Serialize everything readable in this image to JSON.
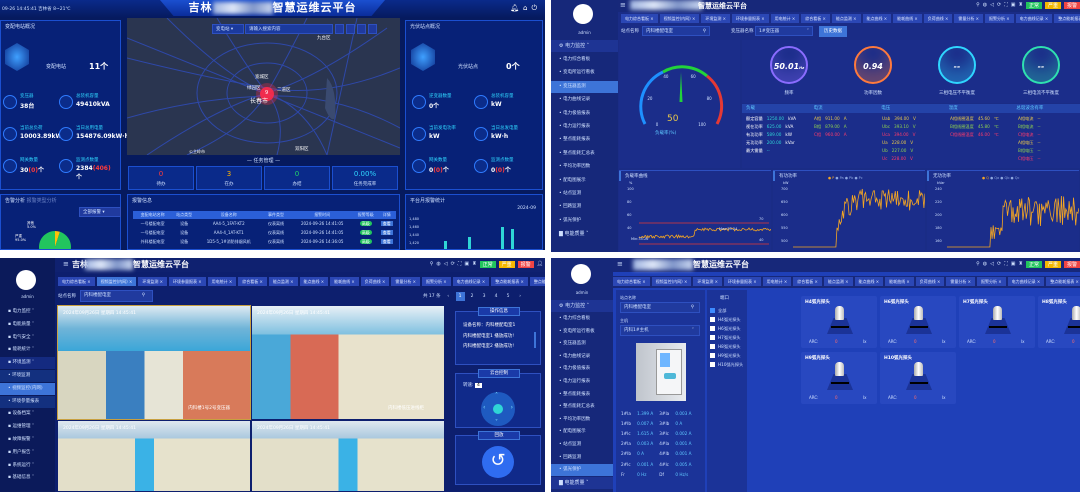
{
  "title_prefix": "吉林",
  "title_suffix": "智慧运维云平台",
  "dashboard": {
    "status": "09-26 14:45:41  吉林省  8~21℃",
    "left": {
      "title": "变配电站概况",
      "station_label": "变配电站",
      "station_value": "11个",
      "kpis": [
        {
          "label": "变压器",
          "value": "38台",
          "icon": "transformer-icon"
        },
        {
          "label": "总装机容量",
          "value": "49410kVA",
          "icon": "capacity-icon"
        },
        {
          "label": "当前总负荷",
          "value": "10003.89kW",
          "icon": "load-icon"
        },
        {
          "label": "当日总用电量",
          "value": "154876.09kW·h",
          "icon": "energy-icon"
        },
        {
          "label": "网关数量",
          "value": "30",
          "alarm": "(0)",
          "unit": "个",
          "icon": "gateway-icon"
        },
        {
          "label": "监测点数量",
          "value": "2384",
          "alarm": "(406)",
          "unit": "个",
          "icon": "monitor-point-icon"
        }
      ]
    },
    "map": {
      "type_select": "变电站",
      "search_placeholder": "请输入搜索内容",
      "marker_count": "9",
      "labels": [
        "九台区",
        "宽城区",
        "绿园区",
        "二道区",
        "长春市",
        "双阳区",
        "公主岭市"
      ]
    },
    "tasks": {
      "title": "任务管理",
      "items": [
        {
          "value": "0",
          "label": "待办",
          "color": "#ff3b3b"
        },
        {
          "value": "3",
          "label": "在办",
          "color": "#ffb300"
        },
        {
          "value": "0",
          "label": "办结",
          "color": "#22d36b"
        },
        {
          "value": "0.00%",
          "label": "任务完成率",
          "color": "#2fd6ff"
        }
      ]
    },
    "right": {
      "title": "光伏站点概况",
      "station_label": "光伏站点",
      "station_value": "0个",
      "kpis": [
        {
          "label": "逆变器数量",
          "value": "0个",
          "icon": "inverter-icon"
        },
        {
          "label": "总装机容量",
          "value": "kW",
          "icon": "capacity-icon"
        },
        {
          "label": "当前发电功率",
          "value": "kW",
          "icon": "power-icon"
        },
        {
          "label": "当日总发电量",
          "value": "kW·h",
          "icon": "energy-icon"
        },
        {
          "label": "网关数量",
          "value": "0",
          "alarm": "(0)",
          "unit": "个",
          "icon": "gateway-icon"
        },
        {
          "label": "监测点数量",
          "value": "0",
          "alarm": "(0)",
          "unit": "个",
          "icon": "monitor-point-icon"
        }
      ]
    },
    "alarm_analysis": {
      "title": "告警分析",
      "subtitle": "报警类型分析",
      "filter": "全部报警",
      "pie": [
        {
          "label": "其他",
          "pct": "5.0%",
          "value": 5,
          "color": "#ffc107"
        },
        {
          "label": "严重",
          "pct": "95.0%",
          "value": 95,
          "color": "#22c55e"
        }
      ]
    },
    "alarm_info": {
      "title": "报警信息",
      "headers": [
        "变配电站名称",
        "站点类型",
        "设备名称",
        "事件类型",
        "报警时间",
        "报警等级",
        "详情"
      ],
      "rows": [
        [
          "一号楼配电室",
          "设备",
          "AA4-5_1FAT-KT2",
          "仪表离线",
          "2024-09-26 14:41:05",
          "高级",
          "查看"
        ],
        [
          "一号楼配电室",
          "设备",
          "AA4-4_1AT-KT1",
          "仪表离线",
          "2024-09-26 14:41:05",
          "高级",
          "查看"
        ],
        [
          "外科楼配电室",
          "设备",
          "1D5-5_1#消防排烟风机",
          "仪表离线",
          "2024-09-26 14:36:05",
          "高级",
          "查看"
        ]
      ]
    },
    "monthly": {
      "title": "平台月报警统计",
      "month": "2024-09",
      "yticks": [
        "1,480",
        "1,460",
        "1,440",
        "1,420"
      ]
    }
  },
  "transformer": {
    "user": "admin",
    "menu": {
      "group": "电力监控",
      "items": [
        "电力综合看板",
        "变电所运行看板",
        "变压器监测",
        "电力曲线记录",
        "电力极值报表",
        "电力运行报表",
        "整点能耗报表",
        "整点能耗汇总表",
        "平均功率因数",
        "配电图展示",
        "站点监测",
        "回路监测",
        "弧光保护"
      ],
      "active": 2,
      "next_group": "电能质量"
    },
    "tabs": [
      "电力综合看板",
      "视频监控(内网)",
      "环境监测",
      "环境参量报表",
      "用电统计",
      "综合看板",
      "能点监测",
      "能点曲线",
      "能耗曲线",
      "负荷曲线",
      "需量分析",
      "报警分析",
      "电力曲线记录",
      "整点能耗报表",
      "整点能耗汇总",
      "变压器监测"
    ],
    "filter": {
      "station_label": "站点名称",
      "station_value": "内科楼配电室",
      "transformer_label": "变压器名称",
      "transformer_value": "1#变压器",
      "history_button": "历史数据"
    },
    "gauge": {
      "value": "50",
      "label": "负载率(%)",
      "ticks": [
        "0",
        "20",
        "40",
        "60",
        "80",
        "100"
      ],
      "percent": 50
    },
    "rings": [
      {
        "value": "50.01",
        "unit": "Hz",
        "label": "频率",
        "color": "#8a6cff"
      },
      {
        "value": "0.94",
        "unit": "",
        "label": "功率因数",
        "color": "#ff7a3d"
      },
      {
        "value": "--",
        "unit": "",
        "label": "三相电压不平衡度",
        "color": "#2fd6ff"
      },
      {
        "value": "--",
        "unit": "",
        "label": "三相电流不平衡度",
        "color": "#2fe0b0"
      }
    ],
    "table": {
      "headers": [
        "负载",
        "电流",
        "电压",
        "温度",
        "总谐波含有率"
      ],
      "load": [
        [
          "额定容量",
          "1250.00",
          "kVA"
        ],
        [
          "视在功率",
          "625.00",
          "kVA"
        ],
        [
          "有功功率",
          "589.00",
          "kW"
        ],
        [
          "无功功率",
          "200.00",
          "kVar"
        ],
        [
          "最大需量",
          "--",
          ""
        ]
      ],
      "current": [
        [
          "A相",
          "911.00",
          "A",
          "#e8c84a"
        ],
        [
          "B相",
          "879.00",
          "A",
          "#8fd14f"
        ],
        [
          "C相",
          "960.00",
          "A",
          "#ff3b6b"
        ]
      ],
      "voltage": [
        [
          "Uab",
          "394.00",
          "V",
          "#e8c84a"
        ],
        [
          "Ubc",
          "393.10",
          "V",
          "#8fd14f"
        ],
        [
          "Uca",
          "394.00",
          "V",
          "#ff3b6b"
        ],
        [
          "Ua",
          "228.00",
          "V",
          "#e8c84a"
        ],
        [
          "Ub",
          "227.00",
          "V",
          "#8fd14f"
        ],
        [
          "Uc",
          "228.00",
          "V",
          "#ff3b6b"
        ]
      ],
      "temperature": [
        [
          "A相线圈温度",
          "45.60",
          "℃",
          "#e8c84a"
        ],
        [
          "B相线圈温度",
          "45.80",
          "℃",
          "#8fd14f"
        ],
        [
          "C相线圈温度",
          "46.00",
          "℃",
          "#ff3b6b"
        ]
      ],
      "thd": [
        [
          "A相电流",
          "--",
          "#e8c84a"
        ],
        [
          "B相电流",
          "--",
          "#8fd14f"
        ],
        [
          "C相电流",
          "--",
          "#ff3b6b"
        ],
        [
          "A相电压",
          "--",
          "#e8c84a"
        ],
        [
          "B相电压",
          "--",
          "#8fd14f"
        ],
        [
          "C相电压",
          "--",
          "#ff3b6b"
        ]
      ]
    },
    "charts": [
      {
        "title": "负载率曲线",
        "unit": "%",
        "yticks": [
          "100",
          "80",
          "60",
          "40"
        ],
        "max_label": "Max:55.24",
        "min_label": "Min:35.26",
        "upper_limit": "70",
        "lower_limit": "40"
      },
      {
        "title": "有功功率",
        "unit": "kW",
        "legend": [
          "P",
          "Pa",
          "Pb",
          "Pc"
        ],
        "yticks": [
          "700",
          "650",
          "600",
          "550",
          "500"
        ]
      },
      {
        "title": "无功功率",
        "unit": "kVar",
        "legend": [
          "Q",
          "Qa",
          "Qb",
          "Qc"
        ],
        "yticks": [
          "240",
          "220",
          "200",
          "180",
          "160"
        ]
      }
    ]
  },
  "video": {
    "user": "admin",
    "menu": [
      {
        "label": "电力监控"
      },
      {
        "label": "电能质量"
      },
      {
        "label": "电气安全"
      },
      {
        "label": "能耗统计"
      },
      {
        "label": "环境监测",
        "open": true
      }
    ],
    "submenu": [
      "环境监测",
      "视频监控(内网)",
      "环境参量报表"
    ],
    "sub_active": 1,
    "menu_after": [
      "设备档案",
      "运维管理",
      "故障报警",
      "用户报告",
      "系统运行",
      "基础信息"
    ],
    "filter": {
      "label": "站点名称",
      "value": "内科楼配电室"
    },
    "pagination": {
      "total": "共 17 条",
      "pages": [
        "1",
        "2",
        "3",
        "4",
        "5"
      ],
      "active": "1"
    },
    "cameras": [
      {
        "timestamp": "2024年09月26日  星期四  14:45:41",
        "name": "内科楼1号2号变压器"
      },
      {
        "timestamp": "2024年09月26日  星期四  14:45:41",
        "name": "内科楼低压进线柜"
      },
      {
        "timestamp": "2024年09月26日  星期四  14:45:41",
        "name": ""
      },
      {
        "timestamp": "2024年09月26日  星期四  14:45:41",
        "name": ""
      }
    ],
    "ops": {
      "title": "操作信息",
      "lines": [
        "设备名称：内科楼配电室1",
        "内科楼配电室1 播放成功!",
        "内科楼配电室2 播放成功!"
      ]
    },
    "ptz": {
      "title": "云台控制",
      "speed_label": "转速:",
      "speed": "4"
    },
    "playback": {
      "title": "回放"
    }
  },
  "arc": {
    "user": "admin",
    "menu": {
      "group": "电力监控",
      "items": [
        "电力综合看板",
        "变电所运行看板",
        "变压器监测",
        "电力曲线记录",
        "电力极值报表",
        "电力运行报表",
        "整点能耗报表",
        "整点能耗汇总表",
        "平均功率因数",
        "配电图展示",
        "站点监测",
        "回路监测",
        "弧光保护"
      ],
      "active": 12,
      "next_group": "电能质量"
    },
    "filter": {
      "station_label": "站点名称",
      "station_value": "内科楼配电室",
      "host_label": "主机",
      "host_value": "内科1#主机"
    },
    "measurements": [
      [
        "1#Ia",
        "1.399 A",
        "3#Ia",
        "0.003 A"
      ],
      [
        "1#Ib",
        "0.007 A",
        "3#Ib",
        "0 A"
      ],
      [
        "1#Ic",
        "1.615 A",
        "3#Ic",
        "0.002 A"
      ],
      [
        "2#Ia",
        "0.003 A",
        "4#Ia",
        "0.001 A"
      ],
      [
        "2#Ib",
        "0 A",
        "4#Ib",
        "0.001 A"
      ],
      [
        "2#Ic",
        "0.001 A",
        "4#Ic",
        "0.005 A"
      ],
      [
        "Fr",
        "0 Hz",
        "Df",
        "0 Hz/s"
      ]
    ],
    "list_title": "端口",
    "list": [
      {
        "label": "全部",
        "checked": true
      },
      {
        "label": "H4弧光探头",
        "checked": false
      },
      {
        "label": "H6弧光探头",
        "checked": false
      },
      {
        "label": "H7弧光探头",
        "checked": false
      },
      {
        "label": "H8弧光探头",
        "checked": false
      },
      {
        "label": "H9弧光探头",
        "checked": false
      },
      {
        "label": "H10弧光探头",
        "checked": false
      }
    ],
    "probes": [
      {
        "name": "H4弧光探头",
        "arc_label": "ARC:",
        "value": "0",
        "unit": "lx"
      },
      {
        "name": "H6弧光探头",
        "arc_label": "ARC:",
        "value": "0",
        "unit": "lx"
      },
      {
        "name": "H7弧光探头",
        "arc_label": "ARC:",
        "value": "0",
        "unit": "lx"
      },
      {
        "name": "H8弧光探头",
        "arc_label": "ARC:",
        "value": "0",
        "unit": "lx"
      },
      {
        "name": "H9弧光探头",
        "arc_label": "ARC:",
        "value": "0",
        "unit": "lx"
      },
      {
        "name": "H10弧光探头",
        "arc_label": "ARC:",
        "value": "0",
        "unit": "lx"
      }
    ]
  },
  "header_buttons": {
    "normal": "正常",
    "warn": "严重",
    "alarm": "报警"
  },
  "colors": {
    "accent": "#3d74d8",
    "navy": "#061a5e",
    "sidebar": "#16287a"
  }
}
